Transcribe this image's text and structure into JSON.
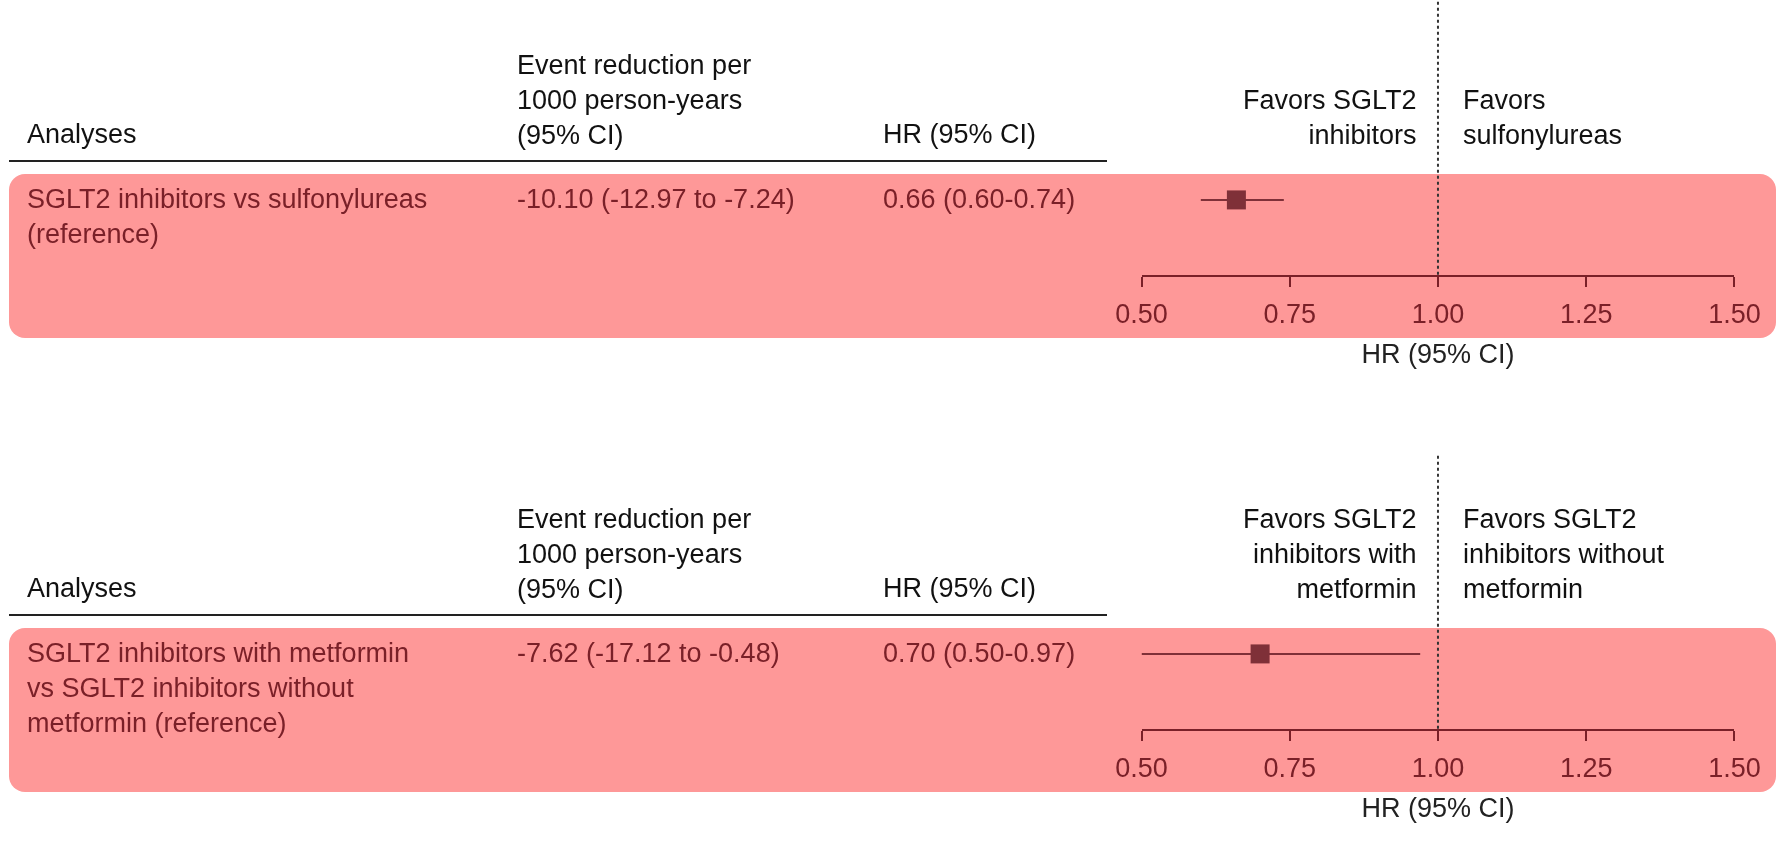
{
  "chart_data": [
    {
      "type": "scatter",
      "orientation": "horizontal",
      "categories": [
        null
      ],
      "values": [
        0.66
      ],
      "errors": [
        [
          0.6,
          0.74
        ]
      ],
      "color": "#7f3038",
      "marker": "square",
      "xlim": [
        0.5,
        1.5
      ],
      "xticks": [
        {
          "value": 0.5,
          "label": "0.50"
        },
        {
          "value": 0.75,
          "label": "0.75"
        },
        {
          "value": 1,
          "label": "1.00"
        },
        {
          "value": 1.25,
          "label": "1.25"
        },
        {
          "value": 1.5,
          "label": "1.50"
        }
      ],
      "xlabel": "HR (95% CI)",
      "tick_labels": "x",
      "grid": false,
      "legend": false,
      "ref_lines": [
        {
          "axis": "x",
          "value": 1,
          "line_style": "dotted",
          "color": "#333333"
        }
      ],
      "annotations": [
        "Analyses",
        "Event reduction per\n1000 person-years\n(95% CI)",
        "HR (95% CI)",
        "Favors SGLT2\ninhibitors",
        "Favors\nsulfonylureas",
        "SGLT2 inhibitors vs sulfonylureas\n(reference)",
        "-10.10 (-12.97 to -7.24)",
        "0.66 (0.60-0.74)"
      ]
    },
    {
      "type": "scatter",
      "orientation": "horizontal",
      "categories": [
        null
      ],
      "values": [
        0.7
      ],
      "errors": [
        [
          0.5,
          0.97
        ]
      ],
      "color": "#7f3038",
      "marker": "square",
      "xlim": [
        0.5,
        1.5
      ],
      "xticks": [
        {
          "value": 0.5,
          "label": "0.50"
        },
        {
          "value": 0.75,
          "label": "0.75"
        },
        {
          "value": 1,
          "label": "1.00"
        },
        {
          "value": 1.25,
          "label": "1.25"
        },
        {
          "value": 1.5,
          "label": "1.50"
        }
      ],
      "xlabel": "HR (95% CI)",
      "tick_labels": "x",
      "grid": false,
      "legend": false,
      "ref_lines": [
        {
          "axis": "x",
          "value": 1,
          "line_style": "dotted",
          "color": "#333333"
        }
      ],
      "annotations": [
        "Analyses",
        "Event reduction per\n1000 person-years\n(95% CI)",
        "HR (95% CI)",
        "Favors SGLT2\ninhibitors with\nmetformin",
        "Favors SGLT2\ninhibitors without\nmetformin",
        "SGLT2 inhibitors with metformin\nvs SGLT2 inhibitors without\nmetformin (reference)",
        "-7.62 (-17.12 to -0.48)",
        "0.70 (0.50-0.97)"
      ]
    }
  ]
}
